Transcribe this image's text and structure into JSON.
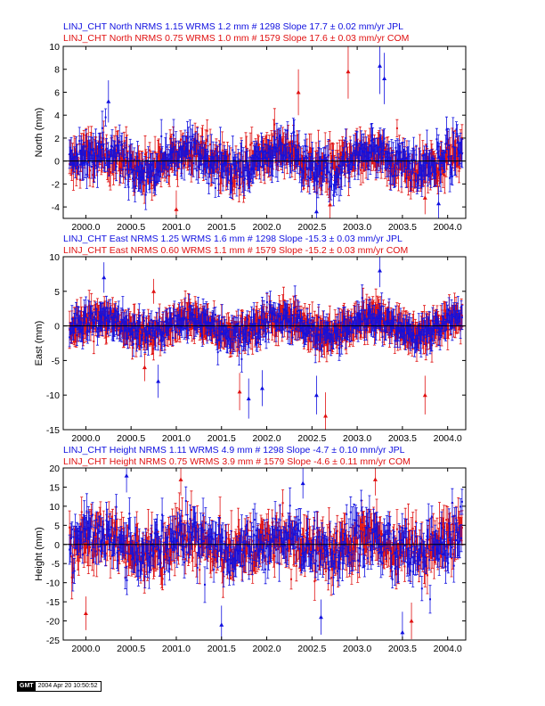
{
  "colors": {
    "jpl": "#1010e0",
    "com": "#e01010",
    "axis": "#000000",
    "zero": "#000000"
  },
  "stamp": {
    "logo": "GMT",
    "timestamp": "2004 Apr 20 10:50:52"
  },
  "chart_data": [
    {
      "type": "scatter",
      "title_lines": [
        {
          "text": "LINJ_CHT North NRMS 1.15 WRMS  1.2 mm # 1298 Slope   17.7 ±  0.02 mm/yr JPL",
          "series": "JPL"
        },
        {
          "text": "LINJ_CHT North NRMS 0.75 WRMS  1.0 mm # 1579 Slope   17.6 ±  0.03 mm/yr COM",
          "series": "COM"
        }
      ],
      "ylabel": "North (mm)",
      "xlim": [
        1999.75,
        2004.2
      ],
      "ylim": [
        -5,
        10
      ],
      "xticks": [
        2000.0,
        2000.5,
        2001.0,
        2001.5,
        2002.0,
        2002.5,
        2003.0,
        2003.5,
        2004.0
      ],
      "xtick_labels": [
        "2000.0",
        "2000.5",
        "2001.0",
        "2001.5",
        "2002.0",
        "2002.5",
        "2003.0",
        "2003.5",
        "2004.0"
      ],
      "yticks": [
        -4,
        -2,
        0,
        2,
        4,
        6,
        8,
        10
      ],
      "ytick_labels": [
        "-4",
        "-2",
        "0",
        "2",
        "4",
        "6",
        "8",
        "10"
      ],
      "zero_line": true,
      "series": [
        {
          "name": "JPL",
          "count": 1298,
          "nrms": 1.15,
          "wrms_mm": 1.2,
          "slope_mm_yr": 17.7,
          "slope_err": 0.02,
          "scatter_sd": 1.3,
          "err_mean": 1.0
        },
        {
          "name": "COM",
          "count": 1579,
          "nrms": 0.75,
          "wrms_mm": 1.0,
          "slope_mm_yr": 17.6,
          "slope_err": 0.03,
          "scatter_sd": 1.1,
          "err_mean": 1.1
        }
      ],
      "outliers": [
        [
          2003.25,
          8.3
        ],
        [
          2002.9,
          7.8
        ],
        [
          2003.3,
          7.2
        ],
        [
          2002.35,
          6.0
        ],
        [
          2000.25,
          5.2
        ],
        [
          2002.7,
          -3.8
        ],
        [
          2003.9,
          -3.7
        ],
        [
          2001.0,
          -4.2
        ],
        [
          2002.55,
          -4.4
        ],
        [
          2003.75,
          -3.2
        ]
      ]
    },
    {
      "type": "scatter",
      "title_lines": [
        {
          "text": "LINJ_CHT East NRMS 1.25 WRMS  1.6 mm # 1298 Slope  -15.3 ±  0.03 mm/yr JPL",
          "series": "JPL"
        },
        {
          "text": "LINJ_CHT East NRMS 0.60 WRMS  1.1 mm # 1579 Slope  -15.2 ±  0.03 mm/yr COM",
          "series": "COM"
        }
      ],
      "ylabel": "East (mm)",
      "xlim": [
        1999.75,
        2004.2
      ],
      "ylim": [
        -15,
        10
      ],
      "xticks": [
        2000.0,
        2000.5,
        2001.0,
        2001.5,
        2002.0,
        2002.5,
        2003.0,
        2003.5,
        2004.0
      ],
      "xtick_labels": [
        "2000.0",
        "2000.5",
        "2001.0",
        "2001.5",
        "2002.0",
        "2002.5",
        "2003.0",
        "2003.5",
        "2004.0"
      ],
      "yticks": [
        -15,
        -10,
        -5,
        0,
        5,
        10
      ],
      "ytick_labels": [
        "-15",
        "-10",
        "-5",
        "0",
        "5",
        "10"
      ],
      "zero_line": true,
      "series": [
        {
          "name": "JPL",
          "count": 1298,
          "nrms": 1.25,
          "wrms_mm": 1.6,
          "slope_mm_yr": -15.3,
          "slope_err": 0.03,
          "scatter_sd": 1.6,
          "err_mean": 1.4
        },
        {
          "name": "COM",
          "count": 1579,
          "nrms": 0.6,
          "wrms_mm": 1.1,
          "slope_mm_yr": -15.2,
          "slope_err": 0.03,
          "scatter_sd": 1.2,
          "err_mean": 1.8
        }
      ],
      "outliers": [
        [
          2003.25,
          8.0
        ],
        [
          2000.75,
          5.0
        ],
        [
          2001.8,
          -10.5
        ],
        [
          2002.65,
          -13.0
        ],
        [
          2001.95,
          -9.0
        ],
        [
          2001.7,
          -9.5
        ],
        [
          2002.55,
          -10.0
        ],
        [
          2003.75,
          -10.0
        ],
        [
          2000.8,
          -8.0
        ],
        [
          2000.65,
          -6.0
        ],
        [
          2000.2,
          7.0
        ]
      ]
    },
    {
      "type": "scatter",
      "title_lines": [
        {
          "text": "LINJ_CHT Height NRMS 1.11 WRMS  4.9 mm # 1298 Slope   -4.7 ±  0.10 mm/yr JPL",
          "series": "JPL"
        },
        {
          "text": "LINJ_CHT Height NRMS 0.75 WRMS  3.9 mm # 1579 Slope   -4.6 ±  0.11 mm/yr COM",
          "series": "COM"
        }
      ],
      "ylabel": "Height (mm)",
      "xlim": [
        1999.75,
        2004.2
      ],
      "ylim": [
        -25,
        20
      ],
      "xticks": [
        2000.0,
        2000.5,
        2001.0,
        2001.5,
        2002.0,
        2002.5,
        2003.0,
        2003.5,
        2004.0
      ],
      "xtick_labels": [
        "2000.0",
        "2000.5",
        "2001.0",
        "2001.5",
        "2002.0",
        "2002.5",
        "2003.0",
        "2003.5",
        "2004.0"
      ],
      "yticks": [
        -25,
        -20,
        -15,
        -10,
        -5,
        0,
        5,
        10,
        15,
        20
      ],
      "ytick_labels": [
        "-25",
        "-20",
        "-15",
        "-10",
        "-5",
        "0",
        "5",
        "10",
        "15",
        "20"
      ],
      "zero_line": true,
      "series": [
        {
          "name": "JPL",
          "count": 1298,
          "nrms": 1.11,
          "wrms_mm": 4.9,
          "slope_mm_yr": -4.7,
          "slope_err": 0.1,
          "scatter_sd": 5.2,
          "err_mean": 3.2
        },
        {
          "name": "COM",
          "count": 1579,
          "nrms": 0.75,
          "wrms_mm": 3.9,
          "slope_mm_yr": -4.6,
          "slope_err": 0.11,
          "scatter_sd": 4.5,
          "err_mean": 3.8
        }
      ],
      "outliers": [
        [
          2003.5,
          -23.0
        ],
        [
          2003.6,
          -20.0
        ],
        [
          2001.5,
          -21.0
        ],
        [
          2000.0,
          -18.0
        ],
        [
          2002.6,
          -19.0
        ],
        [
          2001.05,
          17.0
        ],
        [
          2002.4,
          16.0
        ],
        [
          2003.2,
          17.0
        ],
        [
          2000.45,
          18.0
        ]
      ]
    }
  ]
}
